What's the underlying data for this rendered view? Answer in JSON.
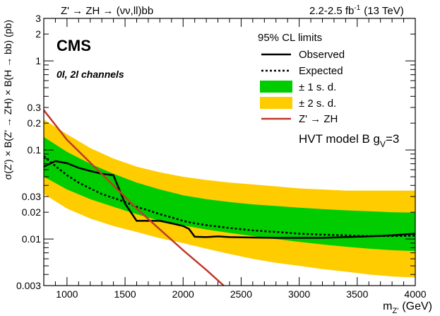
{
  "chart_data": {
    "type": "line",
    "header_left": "Z' → ZH → (νν,ll)bb",
    "header_right_lumi": "2.2-2.5 fb",
    "header_right_sup": "-1",
    "header_right_energy": "(13 TeV)",
    "experiment": "CMS",
    "channels": "0l, 2l channels",
    "legend_title": "95% CL limits",
    "model_label": "HVT model B g",
    "model_sub": "V",
    "model_value": "=3",
    "ylabel": "σ(Z') × B(Z' → ZH) × B(H → bb) (pb)",
    "xlabel_main": "m",
    "xlabel_sub": "Z'",
    "xlabel_unit": "(GeV)",
    "xlim": [
      800,
      4000
    ],
    "ylim": [
      0.003,
      3
    ],
    "yscale": "log",
    "x_ticks": [
      1000,
      1500,
      2000,
      2500,
      3000,
      3500,
      4000
    ],
    "x_tick_labels": [
      "1000",
      "1500",
      "2000",
      "2500",
      "3000",
      "3500",
      "4000"
    ],
    "y_ticks": [
      0.003,
      0.01,
      0.02,
      0.03,
      0.1,
      0.2,
      0.3,
      1,
      2,
      3
    ],
    "y_tick_labels": [
      "0.003",
      "0.01",
      "0.02",
      "0.03",
      "0.1",
      "0.2",
      "0.3",
      "1",
      "2",
      "3"
    ],
    "colors": {
      "band_2sd": "#ffcc00",
      "band_1sd": "#00cc00",
      "observed": "#000000",
      "expected": "#000000",
      "theory": "#c0392b"
    },
    "series": [
      {
        "name": "Observed",
        "style": "solid",
        "x": [
          800,
          900,
          1000,
          1100,
          1200,
          1300,
          1400,
          1500,
          1600,
          1700,
          1800,
          1900,
          2000,
          2050,
          2100,
          2200,
          2300,
          2400,
          2600,
          2800,
          3000,
          3200,
          3400,
          3600,
          3800,
          4000
        ],
        "y": [
          0.065,
          0.075,
          0.071,
          0.063,
          0.058,
          0.054,
          0.052,
          0.025,
          0.016,
          0.016,
          0.016,
          0.015,
          0.014,
          0.013,
          0.0106,
          0.0105,
          0.0107,
          0.0105,
          0.0104,
          0.0103,
          0.0103,
          0.0103,
          0.0105,
          0.0107,
          0.011,
          0.0115
        ]
      },
      {
        "name": "Expected",
        "style": "dashed",
        "x": [
          800,
          900,
          1000,
          1100,
          1200,
          1300,
          1400,
          1500,
          1600,
          1700,
          1800,
          1900,
          2000,
          2100,
          2200,
          2300,
          2400,
          2600,
          2800,
          3000,
          3200,
          3400,
          3600,
          3800,
          4000
        ],
        "y": [
          0.085,
          0.066,
          0.052,
          0.043,
          0.037,
          0.032,
          0.029,
          0.026,
          0.023,
          0.021,
          0.019,
          0.0175,
          0.016,
          0.015,
          0.0143,
          0.0138,
          0.0133,
          0.0125,
          0.012,
          0.0115,
          0.0112,
          0.011,
          0.0108,
          0.0108,
          0.0109
        ]
      },
      {
        "name": "Z' → ZH",
        "style": "theory",
        "x": [
          800,
          1000,
          1200,
          1400,
          1600,
          1800,
          2000,
          2200,
          2350
        ],
        "y": [
          0.28,
          0.13,
          0.072,
          0.04,
          0.022,
          0.0128,
          0.0075,
          0.0045,
          0.003
        ]
      }
    ],
    "bands": [
      {
        "name": "± 2 s. d.",
        "x": [
          800,
          1000,
          1200,
          1400,
          1600,
          1800,
          2000,
          2200,
          2400,
          2600,
          2800,
          3000,
          3200,
          3400,
          3600,
          3800,
          4000
        ],
        "lo": [
          0.032,
          0.022,
          0.017,
          0.014,
          0.012,
          0.0102,
          0.009,
          0.0078,
          0.0068,
          0.006,
          0.0054,
          0.005,
          0.0046,
          0.0043,
          0.004,
          0.0038,
          0.0037
        ],
        "hi": [
          0.22,
          0.15,
          0.105,
          0.08,
          0.065,
          0.056,
          0.05,
          0.046,
          0.043,
          0.041,
          0.039,
          0.037,
          0.036,
          0.035,
          0.035,
          0.035,
          0.035
        ]
      },
      {
        "name": "± 1 s. d.",
        "x": [
          800,
          1000,
          1200,
          1400,
          1600,
          1800,
          2000,
          2200,
          2400,
          2600,
          2800,
          3000,
          3200,
          3400,
          3600,
          3800,
          4000
        ],
        "lo": [
          0.05,
          0.036,
          0.028,
          0.023,
          0.019,
          0.016,
          0.0142,
          0.0128,
          0.0117,
          0.0108,
          0.01,
          0.0093,
          0.0087,
          0.0082,
          0.0078,
          0.0075,
          0.0073
        ],
        "hi": [
          0.14,
          0.095,
          0.07,
          0.054,
          0.043,
          0.036,
          0.031,
          0.028,
          0.026,
          0.0245,
          0.0235,
          0.0225,
          0.0217,
          0.021,
          0.0205,
          0.02,
          0.0198
        ]
      }
    ],
    "legend": {
      "observed": "Observed",
      "expected": "Expected",
      "one_sd": "± 1 s. d.",
      "two_sd": "± 2 s. d.",
      "theory": "Z' → ZH"
    }
  }
}
